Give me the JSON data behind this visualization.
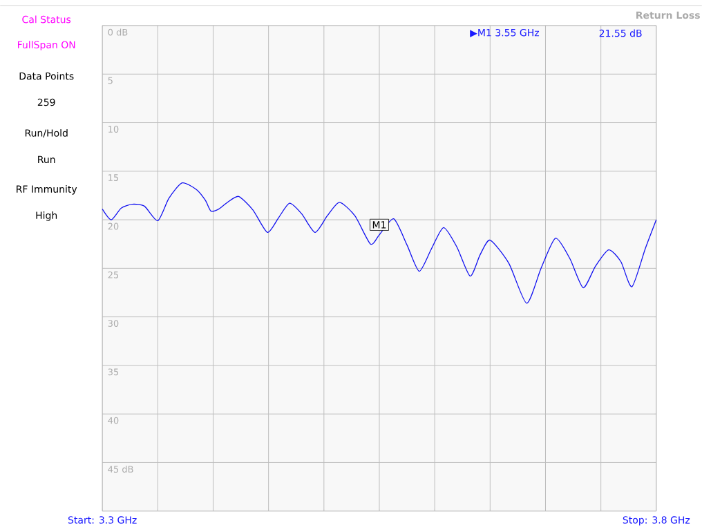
{
  "chart_data": {
    "type": "line",
    "title": "Return Loss",
    "x": [
      3.3,
      3.308,
      3.317,
      3.327,
      3.338,
      3.35,
      3.36,
      3.372,
      3.385,
      3.393,
      3.398,
      3.405,
      3.413,
      3.423,
      3.436,
      3.449,
      3.459,
      3.469,
      3.48,
      3.492,
      3.503,
      3.514,
      3.528,
      3.542,
      3.55,
      3.563,
      3.575,
      3.586,
      3.597,
      3.608,
      3.62,
      3.632,
      3.641,
      3.65,
      3.667,
      3.683,
      3.696,
      3.709,
      3.722,
      3.734,
      3.745,
      3.757,
      3.768,
      3.778,
      3.79,
      3.8
    ],
    "series": [
      {
        "color": "#1010f0",
        "values": [
          18.9,
          20.0,
          18.8,
          18.4,
          18.6,
          20.1,
          17.8,
          16.2,
          16.9,
          18.0,
          19.1,
          18.9,
          18.2,
          17.6,
          19.0,
          21.3,
          19.8,
          18.3,
          19.4,
          21.3,
          19.6,
          18.2,
          19.6,
          22.5,
          21.55,
          19.9,
          22.6,
          25.3,
          23.0,
          20.8,
          22.8,
          25.8,
          23.6,
          22.1,
          24.5,
          28.6,
          25.0,
          21.9,
          24.0,
          27.0,
          24.8,
          23.1,
          24.3,
          26.9,
          23.0,
          20.0
        ]
      }
    ],
    "xlim": [
      3.3,
      3.8
    ],
    "xticks": [
      {
        "value": 3.3,
        "label": "Start: 3.3 GHz"
      },
      {
        "value": 3.35,
        "label": null
      },
      {
        "value": 3.4,
        "label": null
      },
      {
        "value": 3.45,
        "label": null
      },
      {
        "value": 3.5,
        "label": null
      },
      {
        "value": 3.55,
        "label": null
      },
      {
        "value": 3.6,
        "label": null
      },
      {
        "value": 3.65,
        "label": null
      },
      {
        "value": 3.7,
        "label": null
      },
      {
        "value": 3.75,
        "label": null
      },
      {
        "value": 3.8,
        "label": "Stop: 3.8 GHz"
      }
    ],
    "ylim": [
      50,
      0
    ],
    "yticks": [
      {
        "value": 0,
        "label": "0 dB"
      },
      {
        "value": 5,
        "label": "5"
      },
      {
        "value": 10,
        "label": "10"
      },
      {
        "value": 15,
        "label": "15"
      },
      {
        "value": 20,
        "label": "20"
      },
      {
        "value": 25,
        "label": "25"
      },
      {
        "value": 30,
        "label": "30"
      },
      {
        "value": 35,
        "label": "35"
      },
      {
        "value": 40,
        "label": "40"
      },
      {
        "value": 45,
        "label": "45 dB"
      },
      {
        "value": 50,
        "label": null
      }
    ],
    "grid": true,
    "marker": "none",
    "line_style": "solid",
    "annotations": [
      "Cal Status",
      "FullSpan ON",
      "Data Points",
      "259",
      "Run/Hold",
      "Run",
      "RF Immunity",
      "High",
      {
        "text": "M1",
        "x": 3.55,
        "y": 21.55
      },
      "▶M1 3.55 GHz",
      "21.55 dB"
    ]
  }
}
